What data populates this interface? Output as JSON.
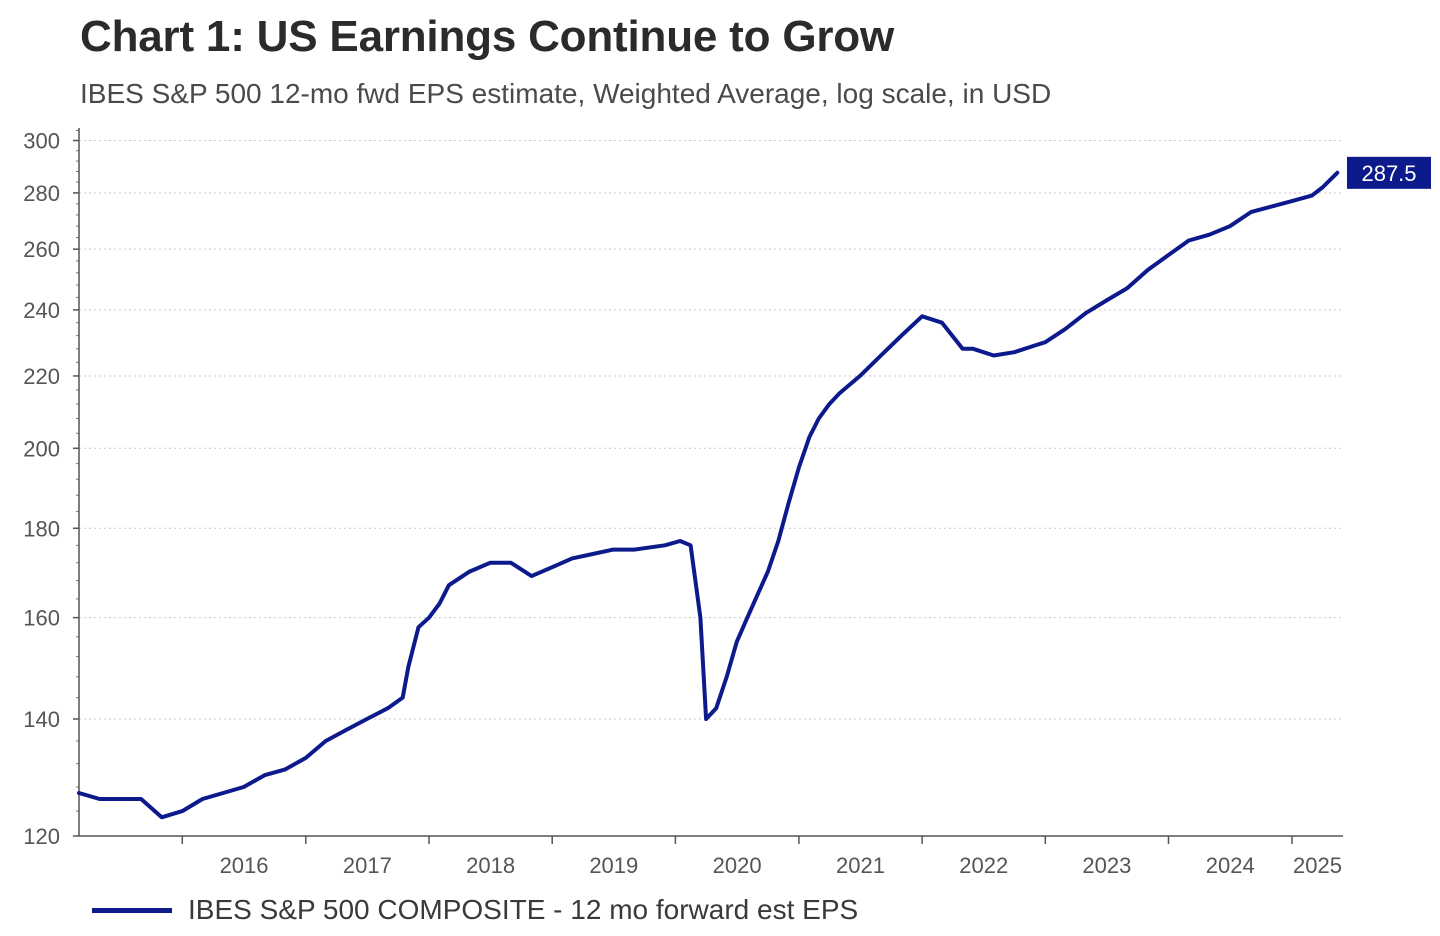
{
  "title": "Chart 1: US Earnings Continue to Grow",
  "subtitle": "IBES S&P 500 12-mo fwd EPS estimate, Weighted Average, log scale, in USD",
  "chart_data": {
    "type": "line",
    "title": "Chart 1: US Earnings Continue to Grow",
    "subtitle": "IBES S&P 500 12-mo fwd EPS estimate, Weighted Average, log scale, in USD",
    "xlabel": "",
    "ylabel": "",
    "y_scale": "log",
    "ylim": [
      120,
      305
    ],
    "xlim": [
      "2015-03-01",
      "2025-06-01"
    ],
    "y_ticks": [
      120,
      140,
      160,
      180,
      200,
      220,
      240,
      260,
      280,
      300
    ],
    "x_ticks": [
      "2016",
      "2017",
      "2018",
      "2019",
      "2020",
      "2021",
      "2022",
      "2023",
      "2024",
      "2025"
    ],
    "grid": "horizontal dotted",
    "legend_position": "bottom-left",
    "line_color": "#0d1a8c",
    "last_value_label": "287.5",
    "series": [
      {
        "name": "IBES S&P 500 COMPOSITE - 12 mo forward est EPS",
        "x": [
          "2015-03-01",
          "2015-05-01",
          "2015-07-01",
          "2015-09-01",
          "2015-11-01",
          "2016-01-01",
          "2016-03-01",
          "2016-05-01",
          "2016-07-01",
          "2016-09-01",
          "2016-11-01",
          "2017-01-01",
          "2017-03-01",
          "2017-05-01",
          "2017-07-01",
          "2017-09-01",
          "2017-10-15",
          "2017-11-01",
          "2017-12-01",
          "2018-01-01",
          "2018-02-01",
          "2018-03-01",
          "2018-05-01",
          "2018-07-01",
          "2018-09-01",
          "2018-11-01",
          "2019-01-01",
          "2019-03-01",
          "2019-05-01",
          "2019-07-01",
          "2019-09-01",
          "2019-12-01",
          "2020-01-15",
          "2020-02-15",
          "2020-03-15",
          "2020-04-01",
          "2020-05-01",
          "2020-06-01",
          "2020-07-01",
          "2020-08-01",
          "2020-09-01",
          "2020-10-01",
          "2020-11-01",
          "2020-12-01",
          "2021-01-01",
          "2021-02-01",
          "2021-03-01",
          "2021-04-01",
          "2021-05-01",
          "2021-07-01",
          "2021-09-01",
          "2021-11-01",
          "2022-01-01",
          "2022-03-01",
          "2022-05-01",
          "2022-06-01",
          "2022-08-01",
          "2022-10-01",
          "2022-12-01",
          "2023-01-01",
          "2023-03-01",
          "2023-05-01",
          "2023-07-01",
          "2023-09-01",
          "2023-11-01",
          "2024-01-01",
          "2024-03-01",
          "2024-05-01",
          "2024-07-01",
          "2024-09-01",
          "2024-11-01",
          "2025-01-01",
          "2025-03-01",
          "2025-04-01",
          "2025-05-15"
        ],
        "values": [
          127,
          126,
          126,
          126,
          123,
          124,
          126,
          127,
          128,
          130,
          131,
          133,
          136,
          138,
          140,
          142,
          144,
          150,
          158,
          160,
          163,
          167,
          170,
          172,
          172,
          169,
          171,
          173,
          174,
          175,
          175,
          176,
          177,
          176,
          160,
          140,
          142,
          148,
          155,
          160,
          165,
          170,
          177,
          186,
          195,
          203,
          208,
          212,
          215,
          220,
          226,
          232,
          238,
          236,
          228,
          228,
          226,
          227,
          229,
          230,
          234,
          239,
          243,
          247,
          253,
          258,
          263,
          265,
          268,
          273,
          275,
          277,
          279,
          282,
          287.5
        ]
      }
    ]
  }
}
